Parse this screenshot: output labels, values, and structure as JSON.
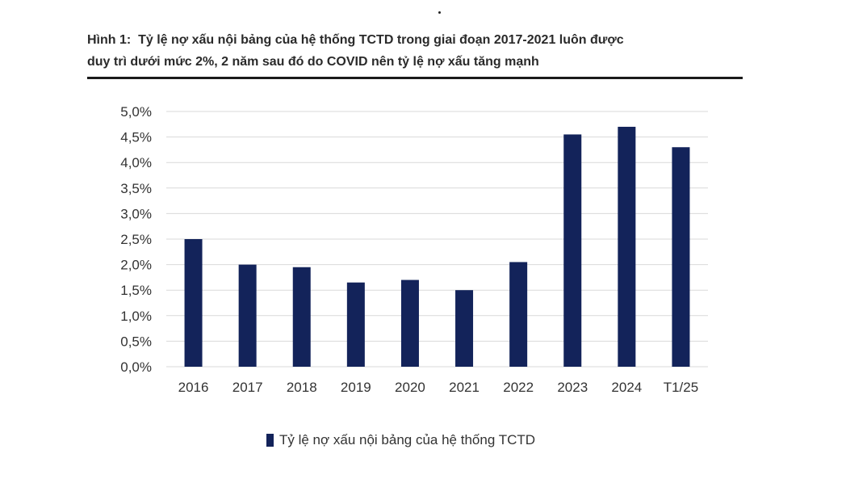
{
  "caption": {
    "prefix": "Hình 1:",
    "line1": "Tỷ lệ nợ xấu nội bảng của hệ thống TCTD trong giai đoạn 2017-2021 luôn được",
    "line2": "duy trì dưới mức 2%, 2 năm sau đó do COVID nên tỷ lệ nợ xấu tăng mạnh"
  },
  "chart_data": {
    "type": "bar",
    "title": "Hình 1: Tỷ lệ nợ xấu nội bảng của hệ thống TCTD trong giai đoạn 2017-2021 luôn được duy trì dưới mức 2%, 2 năm sau đó do COVID nên tỷ lệ nợ xấu tăng mạnh",
    "categories": [
      "2016",
      "2017",
      "2018",
      "2019",
      "2020",
      "2021",
      "2022",
      "2023",
      "2024",
      "T1/25"
    ],
    "series": [
      {
        "name": "Tỷ lệ nợ xấu nội bảng của hệ thống TCTD",
        "values": [
          2.5,
          2.0,
          1.95,
          1.65,
          1.7,
          1.5,
          2.05,
          4.55,
          4.7,
          4.3
        ]
      }
    ],
    "ylim": [
      0,
      5.0
    ],
    "yticks": [
      "0,0%",
      "0,5%",
      "1,0%",
      "1,5%",
      "2,0%",
      "2,5%",
      "3,0%",
      "3,5%",
      "4,0%",
      "4,5%",
      "5,0%"
    ],
    "grid": true,
    "legend_position": "bottom",
    "bar_color": "#13235a",
    "grid_color": "#d9d9d9"
  }
}
